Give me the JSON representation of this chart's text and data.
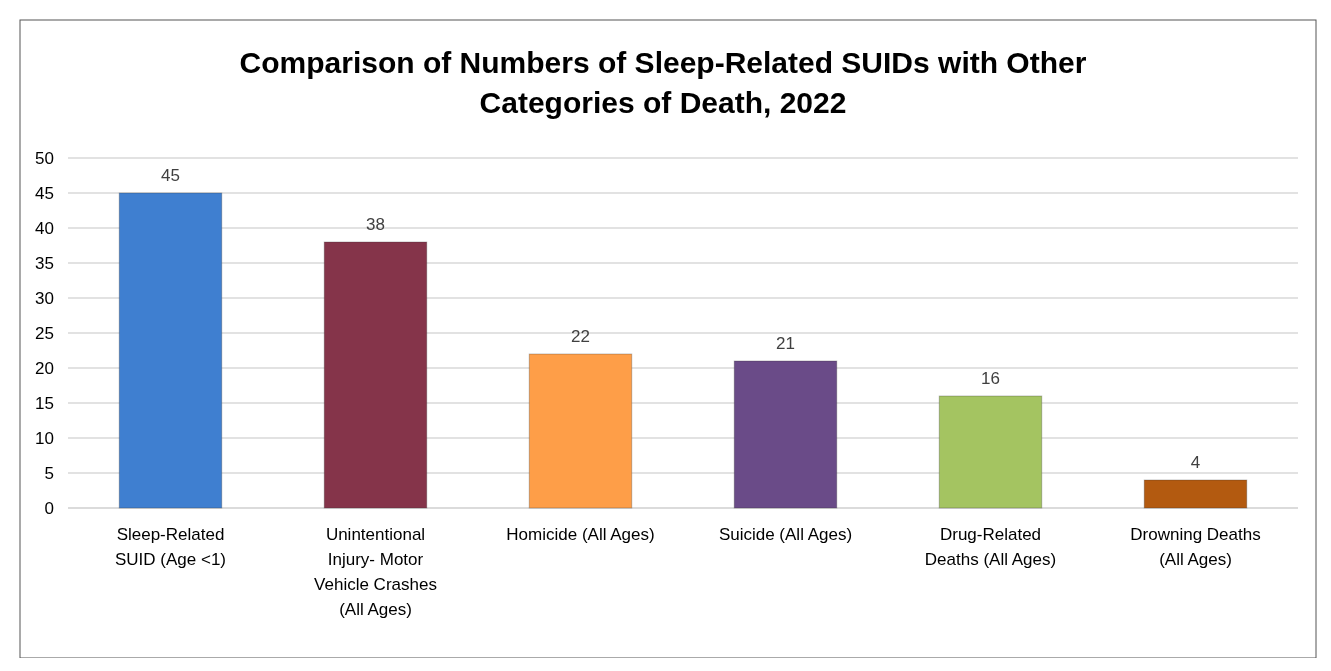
{
  "chart_data": {
    "type": "bar",
    "title": "Comparison of Numbers of Sleep-Related SUIDs with Other Categories of Death, 2022",
    "categories": [
      "Sleep-Related SUID (Age <1)",
      "Unintentional Injury- Motor Vehicle Crashes (All Ages)",
      "Homicide (All Ages)",
      "Suicide (All Ages)",
      "Drug-Related Deaths (All Ages)",
      "Drowning Deaths (All Ages)"
    ],
    "values": [
      45,
      38,
      22,
      21,
      16,
      4
    ],
    "colors": [
      "#3f7fd0",
      "#85344a",
      "#fe9e48",
      "#6a4b88",
      "#a4c461",
      "#b35a10"
    ],
    "ylim": [
      0,
      50
    ],
    "yticks": [
      0,
      5,
      10,
      15,
      20,
      25,
      30,
      35,
      40,
      45,
      50
    ],
    "grid": "y",
    "data_labels": true
  }
}
